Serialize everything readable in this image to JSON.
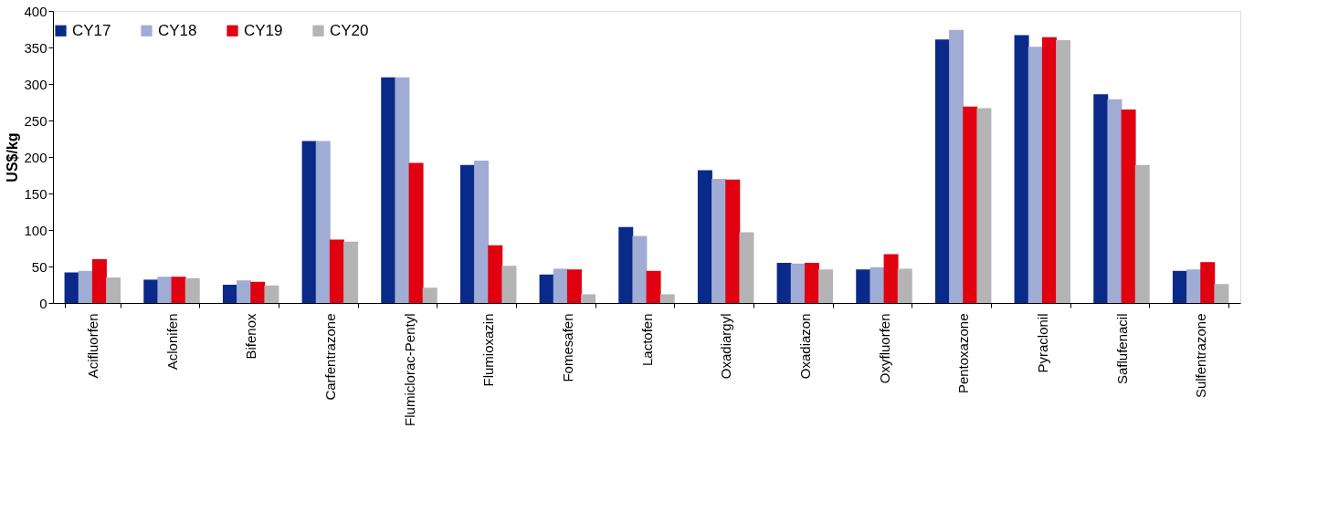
{
  "chart_data": {
    "type": "bar",
    "ylabel": "US$/kg",
    "categories": [
      "Acifluorfen",
      "Aclonifen",
      "Bifenox",
      "Carfentrazone",
      "Flumiclorac-Pentyl",
      "Flumioxazin",
      "Fomesafen",
      "Lactofen",
      "Oxadiargyl",
      "Oxadiazon",
      "Oxyfluorfen",
      "Pentoxazone",
      "Pyraclonil",
      "Saflufenacil",
      "Sulfentrazone"
    ],
    "series": [
      {
        "name": "CY17",
        "color": "#0a2a8a",
        "values": [
          42,
          32,
          25,
          222,
          309,
          189,
          39,
          104,
          182,
          55,
          46,
          361,
          367,
          286,
          44
        ]
      },
      {
        "name": "CY18",
        "color": "#a0acd4",
        "values": [
          44,
          36,
          31,
          222,
          309,
          195,
          47,
          92,
          170,
          54,
          49,
          374,
          351,
          279,
          46
        ]
      },
      {
        "name": "CY19",
        "color": "#e00010",
        "values": [
          60,
          36,
          29,
          87,
          192,
          79,
          46,
          44,
          169,
          55,
          67,
          269,
          364,
          265,
          56
        ]
      },
      {
        "name": "CY20",
        "color": "#b4b4b4",
        "values": [
          35,
          34,
          24,
          84,
          21,
          51,
          12,
          12,
          97,
          46,
          47,
          267,
          360,
          189,
          26
        ]
      }
    ],
    "ylim": [
      0,
      400
    ],
    "yticks": [
      0,
      50,
      100,
      150,
      200,
      250,
      300,
      350,
      400
    ],
    "grid": false,
    "legend": "top"
  }
}
